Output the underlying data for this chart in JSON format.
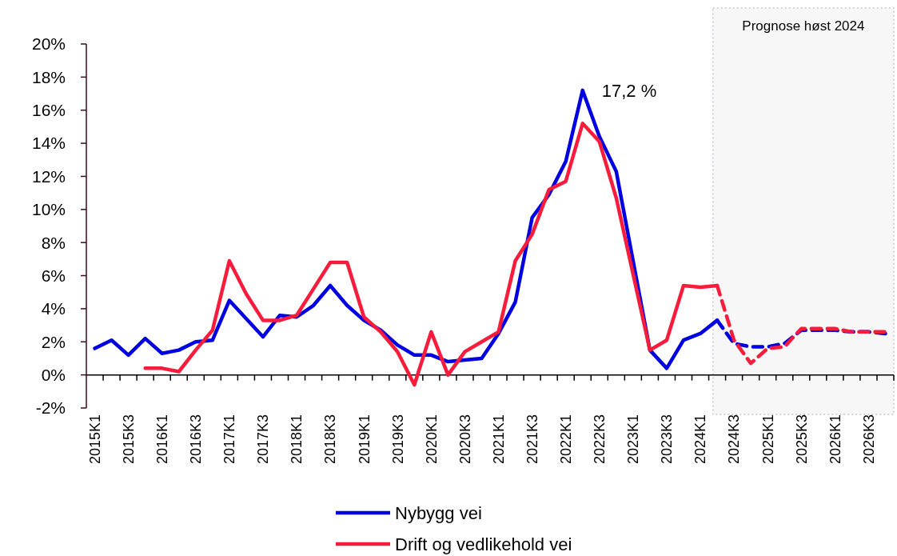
{
  "chart_data": {
    "type": "line",
    "categories": [
      "2015K1",
      null,
      "2015K3",
      null,
      "2016K1",
      null,
      "2016K3",
      null,
      "2017K1",
      null,
      "2017K3",
      null,
      "2018K1",
      null,
      "2018K3",
      null,
      "2019K1",
      null,
      "2019K3",
      null,
      "2020K1",
      null,
      "2020K3",
      null,
      "2021K1",
      null,
      "2021K3",
      null,
      "2022K1",
      null,
      "2022K3",
      null,
      "2023K1",
      null,
      "2023K3",
      null,
      "2024K1",
      null,
      "2024K3",
      null,
      "2025K1",
      null,
      "2025K3",
      null,
      "2026K1",
      null,
      "2026K3",
      null
    ],
    "ylim": [
      -2,
      20
    ],
    "yticks": [
      {
        "value": -2,
        "label": "-2%"
      },
      {
        "value": 0,
        "label": "0%"
      },
      {
        "value": 2,
        "label": "2%"
      },
      {
        "value": 4,
        "label": "4%"
      },
      {
        "value": 6,
        "label": "6%"
      },
      {
        "value": 8,
        "label": "8%"
      },
      {
        "value": 10,
        "label": "10%"
      },
      {
        "value": 12,
        "label": "12%"
      },
      {
        "value": 14,
        "label": "14%"
      },
      {
        "value": 16,
        "label": "16%"
      },
      {
        "value": 18,
        "label": "18%"
      },
      {
        "value": 20,
        "label": "20%"
      }
    ],
    "legend": "bottom",
    "series": [
      {
        "name": "Nybygg vei",
        "color": "#0000e0",
        "line_style": "solid",
        "values": [
          1.6,
          2.1,
          1.2,
          2.2,
          1.3,
          1.5,
          2.0,
          2.1,
          4.5,
          3.4,
          2.3,
          3.6,
          3.5,
          4.2,
          5.4,
          4.2,
          3.3,
          2.7,
          1.8,
          1.2,
          1.2,
          0.8,
          0.9,
          1.0,
          2.5,
          4.4,
          9.5,
          10.9,
          12.9,
          17.2,
          14.4,
          12.3,
          6.9,
          1.5,
          0.4,
          2.1,
          2.5,
          3.3,
          null,
          null,
          null,
          null,
          null,
          null,
          null,
          null,
          null,
          null
        ]
      },
      {
        "name": "Drift og vedlikehold vei",
        "color": "#f81c3c",
        "line_style": "solid",
        "values": [
          null,
          null,
          null,
          0.4,
          0.4,
          0.2,
          1.5,
          2.7,
          6.9,
          4.9,
          3.3,
          3.3,
          3.6,
          5.2,
          6.8,
          6.8,
          3.5,
          2.6,
          1.4,
          -0.6,
          2.6,
          0.0,
          1.4,
          2.0,
          2.6,
          6.9,
          8.5,
          11.2,
          11.7,
          15.2,
          14.1,
          10.7,
          6.1,
          1.5,
          2.1,
          5.4,
          5.3,
          5.4,
          null,
          null,
          null,
          null,
          null,
          null,
          null,
          null,
          null,
          null
        ]
      },
      {
        "color": "#0000e0",
        "line_style": "dashed",
        "values": [
          null,
          null,
          null,
          null,
          null,
          null,
          null,
          null,
          null,
          null,
          null,
          null,
          null,
          null,
          null,
          null,
          null,
          null,
          null,
          null,
          null,
          null,
          null,
          null,
          null,
          null,
          null,
          null,
          null,
          null,
          null,
          null,
          null,
          null,
          null,
          null,
          null,
          3.3,
          1.9,
          1.7,
          1.7,
          1.9,
          2.7,
          2.7,
          2.7,
          2.6,
          2.6,
          2.5
        ]
      },
      {
        "color": "#f81c3c",
        "line_style": "dashed",
        "values": [
          null,
          null,
          null,
          null,
          null,
          null,
          null,
          null,
          null,
          null,
          null,
          null,
          null,
          null,
          null,
          null,
          null,
          null,
          null,
          null,
          null,
          null,
          null,
          null,
          null,
          null,
          null,
          null,
          null,
          null,
          null,
          null,
          null,
          null,
          null,
          null,
          null,
          5.4,
          2.1,
          0.7,
          1.6,
          1.7,
          2.8,
          2.8,
          2.8,
          2.6,
          2.6,
          2.6
        ]
      }
    ],
    "annotations": [
      "17,2 %",
      "Prognose høst 2024"
    ]
  }
}
